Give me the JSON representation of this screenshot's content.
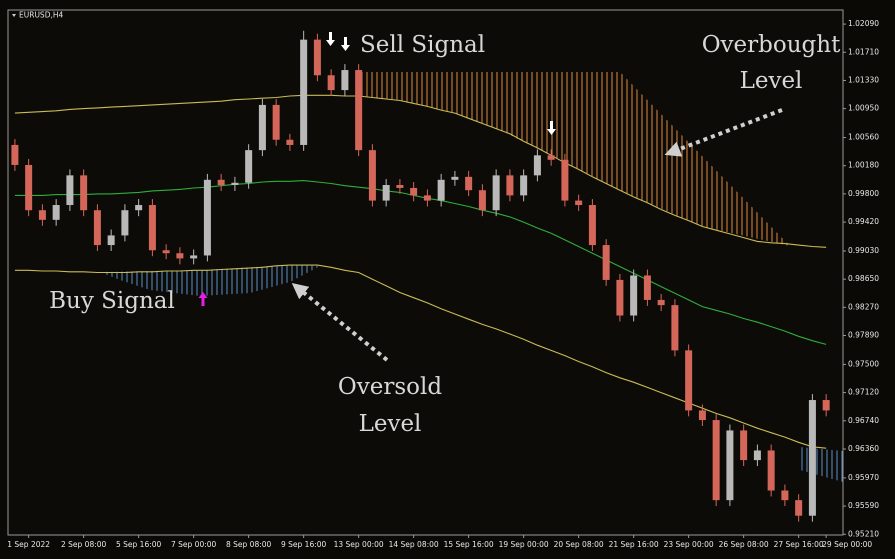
{
  "chart_data": {
    "type": "candlestick",
    "symbol": "EURUSD,H4",
    "categories": [
      null,
      "1 Sep 2022",
      null,
      null,
      null,
      "2 Sep 08:00",
      null,
      null,
      null,
      "5 Sep 16:00",
      null,
      null,
      null,
      "7 Sep 00:00",
      null,
      null,
      null,
      "8 Sep 08:00",
      null,
      null,
      null,
      "9 Sep 16:00",
      null,
      null,
      null,
      "13 Sep 00:00",
      null,
      null,
      null,
      "14 Sep 08:00",
      null,
      null,
      null,
      "15 Sep 16:00",
      null,
      null,
      null,
      "19 Sep 00:00",
      null,
      null,
      null,
      "20 Sep 08:00",
      null,
      null,
      null,
      "21 Sep 16:00",
      null,
      null,
      null,
      "23 Sep 00:00",
      null,
      null,
      null,
      "26 Sep 08:00",
      null,
      null,
      null,
      "27 Sep 16:00",
      null,
      "29 Sep 00:00"
    ],
    "open": [
      1.0046,
      1.0019,
      0.9958,
      0.9945,
      0.9965,
      1.0005,
      0.9958,
      0.9911,
      0.9924,
      0.9958,
      0.9965,
      0.9904,
      0.99,
      0.9893,
      0.9897,
      0.9999,
      0.9992,
      0.9995,
      1.0039,
      1.01,
      1.0053,
      1.0046,
      1.0188,
      1.014,
      1.012,
      1.0147,
      1.0039,
      0.9971,
      0.9992,
      0.9988,
      0.9978,
      0.9971,
      0.9999,
      1.0003,
      0.9985,
      0.9958,
      1.0005,
      0.9978,
      1.0005,
      1.0032,
      1.0026,
      0.9971,
      0.9965,
      0.9911,
      0.9864,
      0.9816,
      0.987,
      0.9837,
      0.983,
      0.9769,
      0.9688,
      0.9675,
      0.9567,
      0.9661,
      0.9621,
      0.9634,
      0.958,
      0.9567,
      0.9546,
      0.9702
    ],
    "high": [
      1.0054,
      1.0027,
      0.9966,
      0.9973,
      1.0013,
      1.0013,
      0.9966,
      0.9932,
      0.9966,
      0.9973,
      0.9973,
      0.9912,
      0.9908,
      0.9905,
      1.0007,
      1.0007,
      1.0003,
      1.0047,
      1.0108,
      1.0108,
      1.0061,
      1.02,
      1.0196,
      1.0148,
      1.0155,
      1.0155,
      1.0047,
      1.0,
      1.0,
      0.9996,
      0.9986,
      1.0007,
      1.0011,
      1.0011,
      0.9993,
      1.0013,
      1.0013,
      1.0013,
      1.004,
      1.004,
      1.0034,
      0.9979,
      0.9973,
      0.9919,
      0.9872,
      0.9878,
      0.9878,
      0.9845,
      0.9838,
      0.9777,
      0.9696,
      0.9683,
      0.9669,
      0.9669,
      0.9642,
      0.9642,
      0.9588,
      0.9575,
      0.971,
      0.971
    ],
    "low": [
      1.0011,
      0.995,
      0.9937,
      0.9937,
      0.9957,
      0.995,
      0.9903,
      0.9903,
      0.9916,
      0.995,
      0.9896,
      0.9892,
      0.9885,
      0.9885,
      0.9889,
      0.9984,
      0.9984,
      0.9987,
      1.0031,
      1.0045,
      1.0038,
      1.0038,
      1.0132,
      1.0112,
      1.0112,
      1.0031,
      0.9963,
      0.9963,
      0.998,
      0.997,
      0.9963,
      0.9963,
      0.9991,
      0.9977,
      0.995,
      0.995,
      0.997,
      0.997,
      0.9997,
      1.0018,
      0.9963,
      0.9957,
      0.9903,
      0.9856,
      0.9808,
      0.9808,
      0.9829,
      0.9822,
      0.9761,
      0.968,
      0.9667,
      0.9559,
      0.9559,
      0.9613,
      0.9613,
      0.9572,
      0.9559,
      0.9538,
      0.9538,
      0.968
    ],
    "close": [
      1.0019,
      0.9958,
      0.9945,
      0.9965,
      1.0005,
      0.9958,
      0.9911,
      0.9924,
      0.9958,
      0.9965,
      0.9904,
      0.99,
      0.9893,
      0.9897,
      0.9999,
      0.9992,
      0.9995,
      1.0039,
      1.01,
      1.0053,
      1.0046,
      1.0188,
      1.014,
      1.012,
      1.0147,
      1.0039,
      0.9971,
      0.9992,
      0.9988,
      0.9978,
      0.9971,
      0.9999,
      1.0003,
      0.9985,
      0.9958,
      1.0005,
      0.9978,
      1.0005,
      1.0032,
      1.0026,
      0.9971,
      0.9965,
      0.9911,
      0.9864,
      0.9816,
      0.987,
      0.9837,
      0.983,
      0.9769,
      0.9688,
      0.9675,
      0.9567,
      0.9661,
      0.9621,
      0.9634,
      0.958,
      0.9567,
      0.9546,
      0.9702,
      0.9688
    ],
    "up_color": "#b9b9b9",
    "down_color": "#d4675a",
    "overlays": [
      {
        "color": "#c9bb55",
        "values": [
          1.0089,
          1.009,
          1.0091,
          1.0092,
          1.0094,
          1.0095,
          1.0096,
          1.0097,
          1.0098,
          1.0099,
          1.01,
          1.0101,
          1.0102,
          1.0103,
          1.0104,
          1.0105,
          1.0107,
          1.0108,
          1.0109,
          1.011,
          1.0112,
          1.0113,
          1.0113,
          1.0113,
          1.0112,
          1.0112,
          1.011,
          1.0108,
          1.0106,
          1.0102,
          1.0098,
          1.0093,
          1.0089,
          1.0082,
          1.0075,
          1.0068,
          1.0061,
          1.0051,
          1.0042,
          1.0032,
          1.0022,
          1.0013,
          1.0003,
          0.9994,
          0.9985,
          0.9976,
          0.9968,
          0.9959,
          0.9951,
          0.9944,
          0.9936,
          0.9931,
          0.9926,
          0.9921,
          0.9916,
          0.9914,
          0.9913,
          0.9911,
          0.9909,
          0.9908
        ]
      },
      {
        "color": "#2fae3a",
        "values": [
          0.9978,
          0.9978,
          0.9978,
          0.9979,
          0.9979,
          0.9979,
          0.998,
          0.998,
          0.9981,
          0.9982,
          0.9984,
          0.9985,
          0.9986,
          0.9988,
          0.9989,
          0.9991,
          0.9993,
          0.9994,
          0.9996,
          0.9997,
          0.9997,
          0.9998,
          0.9996,
          0.9994,
          0.9991,
          0.9989,
          0.9987,
          0.9984,
          0.9982,
          0.9978,
          0.9974,
          0.9971,
          0.9967,
          0.9963,
          0.9958,
          0.9954,
          0.9949,
          0.9942,
          0.9934,
          0.9927,
          0.9918,
          0.9909,
          0.99,
          0.9891,
          0.9882,
          0.9873,
          0.9864,
          0.9855,
          0.9846,
          0.9837,
          0.9828,
          0.9823,
          0.9818,
          0.9812,
          0.9807,
          0.9801,
          0.9795,
          0.9788,
          0.9782,
          0.9777
        ]
      },
      {
        "color": "#c9bb55",
        "values": [
          0.9877,
          0.9877,
          0.9876,
          0.9876,
          0.9875,
          0.9875,
          0.9874,
          0.9874,
          0.9874,
          0.9875,
          0.9875,
          0.9876,
          0.9876,
          0.9877,
          0.9877,
          0.9878,
          0.9879,
          0.988,
          0.9881,
          0.9883,
          0.9884,
          0.9884,
          0.9884,
          0.9881,
          0.9877,
          0.9874,
          0.9865,
          0.9856,
          0.9847,
          0.984,
          0.9833,
          0.9825,
          0.9818,
          0.9811,
          0.9804,
          0.9798,
          0.9791,
          0.9784,
          0.9776,
          0.9769,
          0.9762,
          0.9754,
          0.9747,
          0.9739,
          0.9732,
          0.9726,
          0.9719,
          0.9712,
          0.9705,
          0.9698,
          0.9691,
          0.9684,
          0.9678,
          0.9671,
          0.9664,
          0.9658,
          0.9652,
          0.9645,
          0.9639,
          0.9637
        ]
      }
    ],
    "ylim": [
      0.952,
      1.0228
    ],
    "yticks": [
      {
        "value": 1.0209,
        "label": "1.02090"
      },
      {
        "value": 1.0171,
        "label": "1.01710"
      },
      {
        "value": 1.0133,
        "label": "1.01330"
      },
      {
        "value": 1.0095,
        "label": "1.00950"
      },
      {
        "value": 1.0056,
        "label": "1.00560"
      },
      {
        "value": 1.0018,
        "label": "1.00180"
      },
      {
        "value": 0.998,
        "label": "0.99800"
      },
      {
        "value": 0.9942,
        "label": "0.99420"
      },
      {
        "value": 0.9903,
        "label": "0.99030"
      },
      {
        "value": 0.9865,
        "label": "0.98650"
      },
      {
        "value": 0.9827,
        "label": "0.98270"
      },
      {
        "value": 0.9789,
        "label": "0.97890"
      },
      {
        "value": 0.975,
        "label": "0.97500"
      },
      {
        "value": 0.9712,
        "label": "0.97120"
      },
      {
        "value": 0.9674,
        "label": "0.96740"
      },
      {
        "value": 0.9636,
        "label": "0.96360"
      },
      {
        "value": 0.9597,
        "label": "0.95970"
      },
      {
        "value": 0.9559,
        "label": "0.95590"
      },
      {
        "value": 0.9521,
        "label": "0.95210"
      }
    ],
    "annotations": {
      "sell": "Sell Signal",
      "overbought": [
        "Overbought",
        "Level"
      ],
      "buy": "Buy Signal",
      "oversold": [
        "Oversold",
        "Level"
      ]
    }
  }
}
